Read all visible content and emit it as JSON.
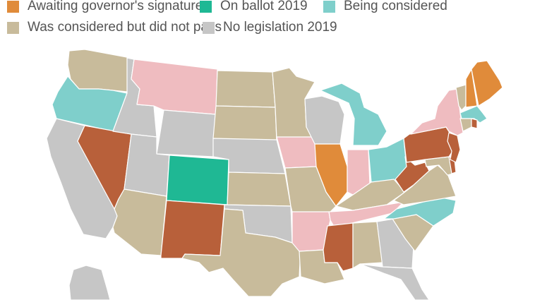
{
  "legend": {
    "items": [
      {
        "key": "governor",
        "label": "Awaiting governor's signature",
        "color": "#e08b3a"
      },
      {
        "key": "ballot",
        "label": "On ballot 2019",
        "color": "#1fb894"
      },
      {
        "key": "considered",
        "label": "Being considered",
        "color": "#7fcfcb"
      },
      {
        "key": "failed",
        "label": "Was considered but did not pass",
        "color": "#c8bb9b"
      },
      {
        "key": "none",
        "label": "No legislation 2019",
        "color": "#c6c6c6"
      }
    ]
  },
  "palette": {
    "signed": "#b8603a",
    "proposed": "#efbcc0",
    "governor": "#e08b3a",
    "ballot": "#1fb894",
    "considered": "#7fcfcb",
    "failed": "#c8bb9b",
    "none": "#c6c6c6"
  },
  "states": {
    "WA": "failed",
    "OR": "considered",
    "CA": "none",
    "NV": "signed",
    "ID": "none",
    "MT": "proposed",
    "WY": "none",
    "UT": "none",
    "AZ": "failed",
    "CO": "ballot",
    "NM": "signed",
    "ND": "failed",
    "SD": "failed",
    "NE": "none",
    "KS": "failed",
    "OK": "none",
    "TX": "failed",
    "MN": "failed",
    "IA": "proposed",
    "MO": "failed",
    "AR": "proposed",
    "LA": "failed",
    "WI": "none",
    "IL": "governor",
    "MI": "considered",
    "IN": "proposed",
    "OH": "considered",
    "KY": "failed",
    "TN": "proposed",
    "MS": "signed",
    "AL": "failed",
    "GA": "none",
    "FL": "none",
    "SC": "failed",
    "NC": "considered",
    "VA": "failed",
    "WV": "signed",
    "PA": "signed",
    "NY": "proposed",
    "NJ": "signed",
    "DE": "signed",
    "MD": "failed",
    "CT": "failed",
    "RI": "signed",
    "MA": "considered",
    "VT": "failed",
    "NH": "governor",
    "ME": "governor",
    "AK": "none"
  }
}
